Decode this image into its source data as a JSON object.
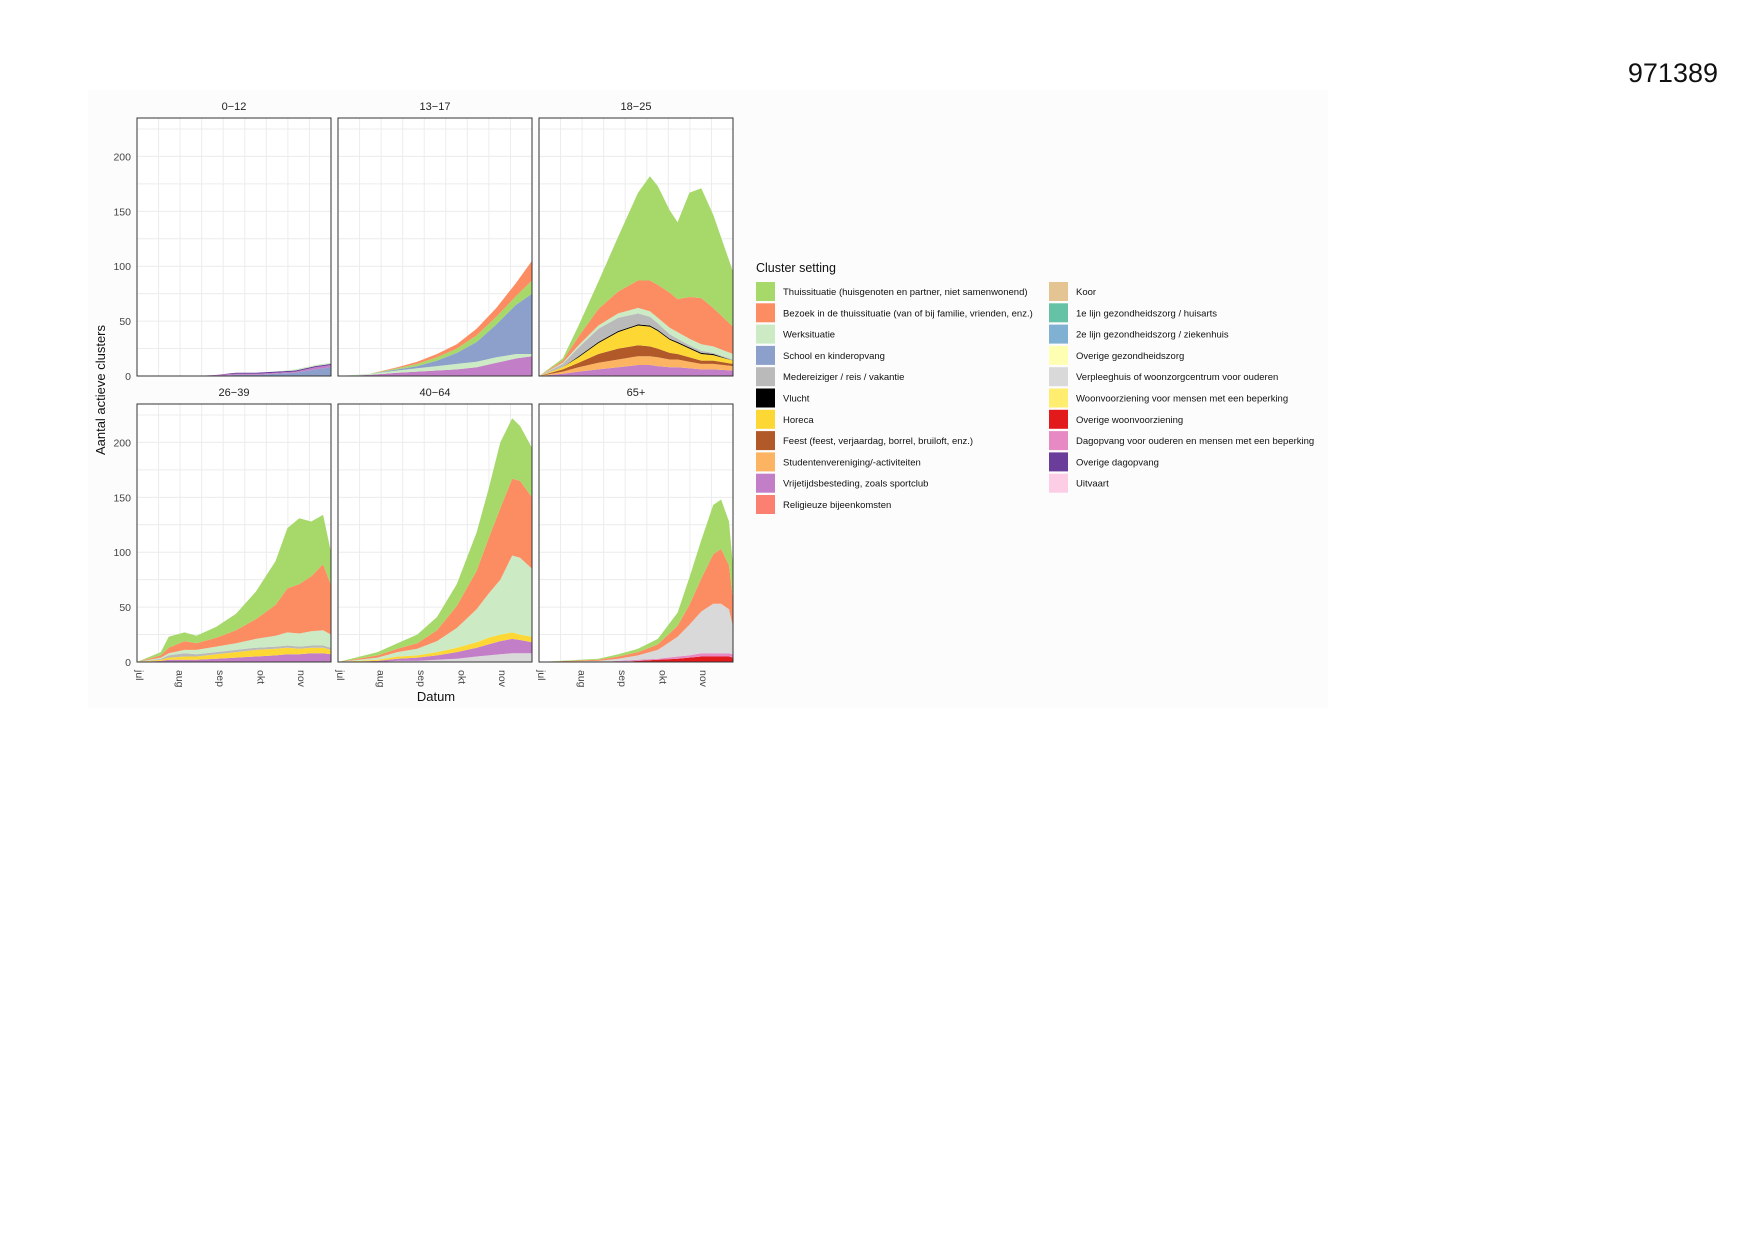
{
  "document": {
    "id": "971389"
  },
  "chart_data": {
    "type": "area",
    "stacked": true,
    "xlabel": "Datum",
    "ylabel": "Aantal actieve clusters",
    "x_ticks": [
      "jul",
      "aug",
      "sep",
      "okt",
      "nov"
    ],
    "y_ticks": [
      0,
      50,
      100,
      150,
      200
    ],
    "ylim": [
      0,
      235
    ],
    "legend_title": "Cluster setting",
    "legend": [
      {
        "name": "Thuissituatie (huisgenoten en partner, niet samenwonend)",
        "color": "#a6d96a"
      },
      {
        "name": "Bezoek in de thuissituatie (van of bij familie, vrienden, enz.)",
        "color": "#fc8d62"
      },
      {
        "name": "Werksituatie",
        "color": "#ccebc5"
      },
      {
        "name": "School en kinderopvang",
        "color": "#8da0cb"
      },
      {
        "name": "Medereiziger / reis / vakantie",
        "color": "#bababa"
      },
      {
        "name": "Vlucht",
        "color": "#000000"
      },
      {
        "name": "Horeca",
        "color": "#fdd835"
      },
      {
        "name": "Feest (feest, verjaardag, borrel, bruiloft, enz.)",
        "color": "#b15928"
      },
      {
        "name": "Studentenvereniging/-activiteiten",
        "color": "#fdb462"
      },
      {
        "name": "Vrijetijdsbesteding, zoals sportclub",
        "color": "#c27fc7"
      },
      {
        "name": "Religieuze bijeenkomsten",
        "color": "#fb8072"
      },
      {
        "name": "Koor",
        "color": "#e5c494"
      },
      {
        "name": "1e lijn gezondheidszorg / huisarts",
        "color": "#66c2a5"
      },
      {
        "name": "2e lijn gezondheidszorg / ziekenhuis",
        "color": "#80b1d3"
      },
      {
        "name": "Overige gezondheidszorg",
        "color": "#ffffb3"
      },
      {
        "name": "Verpleeghuis of woonzorgcentrum voor ouderen",
        "color": "#d9d9d9"
      },
      {
        "name": "Woonvoorziening voor mensen met een beperking",
        "color": "#ffed6f"
      },
      {
        "name": "Overige woonvoorziening",
        "color": "#e31a1c"
      },
      {
        "name": "Dagopvang voor ouderen en mensen met een beperking",
        "color": "#e78ac3"
      },
      {
        "name": "Overige dagopvang",
        "color": "#6a3d9a"
      },
      {
        "name": "Uitvaart",
        "color": "#fccde5"
      }
    ],
    "facets": [
      {
        "title": "0−12",
        "x": [
          0,
          15,
          20,
          25,
          30,
          35,
          40,
          45,
          49
        ],
        "series": {
          "School en kinderopvang": [
            0,
            0,
            0,
            1,
            1,
            2,
            3,
            6,
            8
          ],
          "Vrijetijdsbesteding, zoals sportclub": [
            0,
            0,
            1,
            1,
            1,
            1,
            1,
            2,
            2
          ],
          "Overige dagopvang": [
            0,
            0,
            0,
            1,
            1,
            1,
            1,
            1,
            1
          ],
          "Werksituatie": [
            0,
            0,
            0,
            0,
            0,
            0,
            1,
            1,
            1
          ]
        }
      },
      {
        "title": "13−17",
        "x": [
          0,
          8,
          15,
          20,
          25,
          30,
          35,
          40,
          45,
          49
        ],
        "series": {
          "Vrijetijdsbesteding, zoals sportclub": [
            0,
            1,
            3,
            4,
            5,
            6,
            8,
            12,
            16,
            18
          ],
          "Werksituatie": [
            0,
            1,
            2,
            3,
            4,
            5,
            5,
            5,
            4,
            2
          ],
          "School en kinderopvang": [
            0,
            0,
            1,
            2,
            5,
            10,
            18,
            30,
            45,
            55
          ],
          "Thuissituatie (huisgenoten en partner, niet samenwonend)": [
            0,
            0,
            1,
            2,
            3,
            4,
            6,
            7,
            8,
            12
          ],
          "Bezoek in de thuissituatie (van of bij familie, vrienden, enz.)": [
            0,
            0,
            1,
            2,
            3,
            4,
            6,
            8,
            12,
            18
          ]
        }
      },
      {
        "title": "18−25",
        "x": [
          0,
          6,
          10,
          15,
          20,
          25,
          28,
          30,
          33,
          35,
          38,
          41,
          44,
          49
        ],
        "series": {
          "Vrijetijdsbesteding, zoals sportclub": [
            0,
            2,
            4,
            6,
            8,
            10,
            10,
            9,
            8,
            8,
            7,
            6,
            6,
            5
          ],
          "Studentenvereniging/-activiteiten": [
            0,
            2,
            4,
            6,
            7,
            8,
            8,
            8,
            7,
            7,
            6,
            5,
            5,
            4
          ],
          "Feest (feest, verjaardag, borrel, bruiloft, enz.)": [
            0,
            2,
            4,
            8,
            10,
            10,
            9,
            8,
            6,
            5,
            4,
            3,
            3,
            2
          ],
          "Horeca": [
            0,
            2,
            5,
            10,
            15,
            18,
            18,
            16,
            12,
            10,
            8,
            6,
            5,
            3
          ],
          "Vlucht": [
            0,
            0,
            1,
            1,
            1,
            1,
            1,
            1,
            1,
            1,
            1,
            1,
            1,
            0
          ],
          "Medereiziger / reis / vakantie": [
            0,
            3,
            8,
            12,
            12,
            10,
            8,
            6,
            4,
            3,
            2,
            2,
            1,
            1
          ],
          "Werksituatie": [
            0,
            1,
            2,
            3,
            4,
            5,
            5,
            5,
            6,
            6,
            6,
            6,
            6,
            5
          ],
          "Bezoek in de thuissituatie (van of bij familie, vrienden, enz.)": [
            0,
            2,
            8,
            15,
            20,
            25,
            28,
            30,
            32,
            30,
            38,
            42,
            35,
            25
          ],
          "Thuissituatie (huisgenoten en partner, niet samenwonend)": [
            0,
            2,
            10,
            25,
            50,
            80,
            95,
            90,
            75,
            70,
            95,
            100,
            85,
            50
          ]
        }
      },
      {
        "title": "26−39",
        "x": [
          0,
          6,
          8,
          12,
          15,
          20,
          25,
          30,
          35,
          38,
          41,
          44,
          47,
          49
        ],
        "series": {
          "Vrijetijdsbesteding, zoals sportclub": [
            0,
            1,
            2,
            2,
            2,
            3,
            4,
            5,
            6,
            7,
            7,
            8,
            8,
            7
          ],
          "Horeca": [
            0,
            1,
            2,
            3,
            3,
            4,
            5,
            6,
            6,
            6,
            5,
            5,
            5,
            4
          ],
          "Medereiziger / reis / vakantie": [
            0,
            1,
            2,
            3,
            2,
            2,
            2,
            2,
            2,
            2,
            2,
            2,
            2,
            2
          ],
          "Werksituatie": [
            0,
            1,
            2,
            3,
            4,
            5,
            6,
            8,
            10,
            12,
            12,
            13,
            14,
            12
          ],
          "Bezoek in de thuissituatie (van of bij familie, vrienden, enz.)": [
            0,
            2,
            5,
            8,
            6,
            8,
            12,
            18,
            28,
            40,
            45,
            50,
            60,
            45
          ],
          "Thuissituatie (huisgenoten en partner, niet samenwonend)": [
            0,
            3,
            10,
            8,
            7,
            10,
            15,
            25,
            40,
            55,
            60,
            50,
            45,
            30
          ]
        }
      },
      {
        "title": "40−64",
        "x": [
          0,
          10,
          15,
          20,
          25,
          30,
          35,
          38,
          41,
          44,
          46,
          49
        ],
        "series": {
          "Verpleeghuis of woonzorgcentrum voor ouderen": [
            0,
            0,
            1,
            1,
            2,
            3,
            5,
            6,
            7,
            8,
            8,
            8
          ],
          "Vrijetijdsbesteding, zoals sportclub": [
            0,
            1,
            2,
            3,
            4,
            6,
            8,
            10,
            12,
            13,
            12,
            10
          ],
          "Horeca": [
            0,
            1,
            2,
            2,
            3,
            4,
            5,
            6,
            6,
            6,
            5,
            5
          ],
          "Werksituatie": [
            0,
            2,
            4,
            6,
            10,
            18,
            30,
            40,
            50,
            70,
            70,
            62
          ],
          "Bezoek in de thuissituatie (van of bij familie, vrienden, enz.)": [
            0,
            2,
            3,
            5,
            10,
            20,
            35,
            50,
            65,
            70,
            70,
            65
          ],
          "Thuissituatie (huisgenoten en partner, niet samenwonend)": [
            0,
            3,
            5,
            8,
            12,
            20,
            35,
            45,
            60,
            55,
            50,
            45
          ]
        }
      },
      {
        "title": "65+",
        "x": [
          0,
          15,
          20,
          25,
          30,
          35,
          38,
          41,
          44,
          46,
          48,
          49
        ],
        "series": {
          "Overige woonvoorziening": [
            0,
            0,
            0,
            1,
            2,
            3,
            4,
            5,
            5,
            5,
            5,
            4
          ],
          "Dagopvang voor ouderen en mensen met een beperking": [
            0,
            0,
            1,
            1,
            1,
            2,
            2,
            3,
            3,
            3,
            3,
            3
          ],
          "Verpleeghuis of woonzorgcentrum voor ouderen": [
            0,
            1,
            2,
            4,
            8,
            18,
            28,
            38,
            45,
            45,
            40,
            25
          ],
          "Bezoek in de thuissituatie (van of bij familie, vrienden, enz.)": [
            0,
            1,
            2,
            3,
            5,
            10,
            18,
            30,
            45,
            50,
            40,
            25
          ],
          "Thuissituatie (huisgenoten en partner, niet samenwonend)": [
            0,
            1,
            2,
            3,
            5,
            12,
            25,
            35,
            45,
            45,
            40,
            30
          ]
        }
      }
    ]
  }
}
